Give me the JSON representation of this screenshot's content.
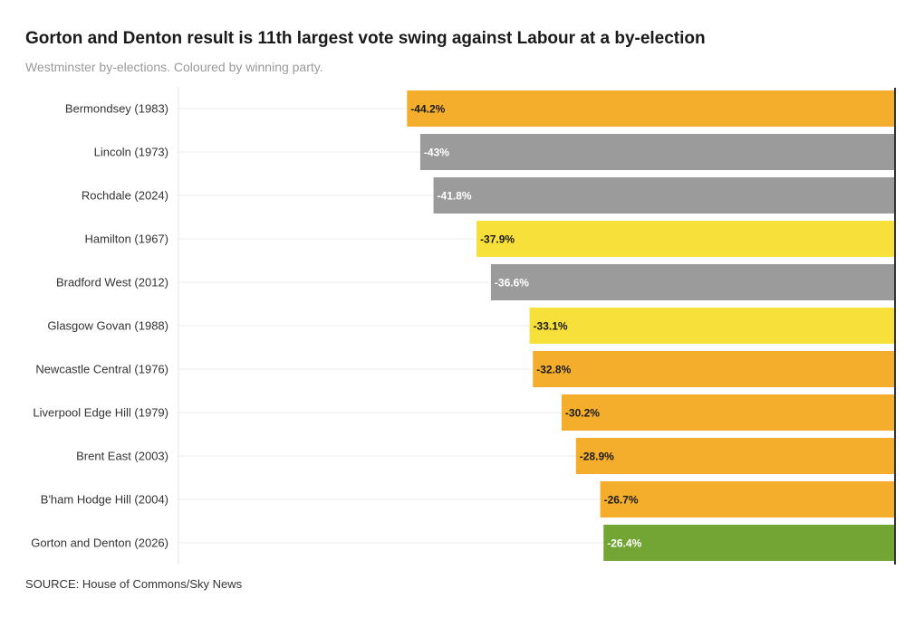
{
  "header": {
    "title": "Gorton and Denton result is 11th largest vote swing against Labour at a by-election",
    "subtitle": "Westminster by-elections. Coloured by winning party."
  },
  "footer": {
    "source": "SOURCE: House of Commons/Sky News"
  },
  "chart_data": {
    "type": "bar",
    "orientation": "horizontal",
    "title": "Gorton and Denton result is 11th largest vote swing against Labour at a by-election",
    "subtitle": "Westminster by-elections. Coloured by winning party.",
    "xlabel": "",
    "ylabel": "",
    "xlim": [
      -64.9,
      0
    ],
    "grid": false,
    "categories": [
      "Bermondsey (1983)",
      "Lincoln (1973)",
      "Rochdale (2024)",
      "Hamilton (1967)",
      "Bradford West (2012)",
      "Glasgow Govan (1988)",
      "Newcastle Central (1976)",
      "Liverpool Edge Hill (1979)",
      "Brent East (2003)",
      "B'ham Hodge Hill (2004)",
      "Gorton and Denton (2026)"
    ],
    "values": [
      -44.2,
      -43,
      -41.8,
      -37.9,
      -36.6,
      -33.1,
      -32.8,
      -30.2,
      -28.9,
      -26.7,
      -26.4
    ],
    "value_labels": [
      "-44.2%",
      "-43%",
      "-41.8%",
      "-37.9%",
      "-36.6%",
      "-33.1%",
      "-32.8%",
      "-30.2%",
      "-28.9%",
      "-26.7%",
      "-26.4%"
    ],
    "bar_colors": [
      "#f5ae2c",
      "#9b9b9b",
      "#9b9b9b",
      "#f8e03b",
      "#9b9b9b",
      "#f8e03b",
      "#f5ae2c",
      "#f5ae2c",
      "#f5ae2c",
      "#f5ae2c",
      "#72a533"
    ],
    "label_colors": [
      "#1a1a1a",
      "#ffffff",
      "#ffffff",
      "#1a1a1a",
      "#ffffff",
      "#1a1a1a",
      "#1a1a1a",
      "#1a1a1a",
      "#1a1a1a",
      "#1a1a1a",
      "#ffffff"
    ]
  }
}
